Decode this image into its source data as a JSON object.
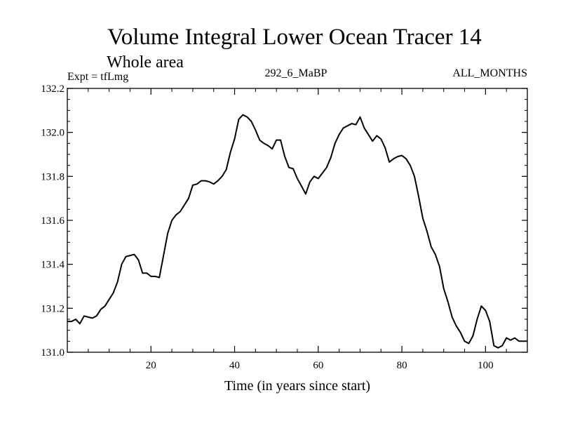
{
  "chart_data": {
    "type": "line",
    "title": "Volume Integral Lower Ocean Tracer 14",
    "subtitle": "Whole area",
    "annotations": {
      "left": "Expt = tfLmg",
      "center": "292_6_MaBP",
      "right": "ALL_MONTHS"
    },
    "xlabel": "Time (in years since start)",
    "ylabel": "",
    "xlim": [
      0,
      110
    ],
    "ylim": [
      131.0,
      132.2
    ],
    "xticks": [
      20,
      40,
      60,
      80,
      100
    ],
    "xtick_labels": [
      "20",
      "40",
      "60",
      "80",
      "100"
    ],
    "yticks": [
      131.0,
      131.2,
      131.4,
      131.6,
      131.8,
      132.0,
      132.2
    ],
    "ytick_labels": [
      "131.0",
      "131.2",
      "131.4",
      "131.6",
      "131.8",
      "132.0",
      "132.2"
    ],
    "series": [
      {
        "name": "tracer14",
        "color": "#000000",
        "x": [
          0,
          1,
          2,
          3,
          4,
          5,
          6,
          7,
          8,
          9,
          10,
          11,
          12,
          13,
          14,
          15,
          16,
          17,
          18,
          19,
          20,
          21,
          22,
          23,
          24,
          25,
          26,
          27,
          28,
          29,
          30,
          31,
          32,
          33,
          34,
          35,
          36,
          37,
          38,
          39,
          40,
          41,
          42,
          43,
          44,
          45,
          46,
          47,
          48,
          49,
          50,
          51,
          52,
          53,
          54,
          55,
          56,
          57,
          58,
          59,
          60,
          61,
          62,
          63,
          64,
          65,
          66,
          67,
          68,
          69,
          70,
          71,
          72,
          73,
          74,
          75,
          76,
          77,
          78,
          79,
          80,
          81,
          82,
          83,
          84,
          85,
          86,
          87,
          88,
          89,
          90,
          91,
          92,
          93,
          94,
          95,
          96,
          97,
          98,
          99,
          100,
          101,
          102,
          103,
          104,
          105,
          106,
          107,
          108,
          109,
          110
        ],
        "y": [
          131.14,
          131.14,
          131.15,
          131.13,
          131.165,
          131.16,
          131.155,
          131.165,
          131.195,
          131.21,
          131.24,
          131.27,
          131.32,
          131.4,
          131.435,
          131.44,
          131.445,
          131.42,
          131.36,
          131.36,
          131.345,
          131.345,
          131.34,
          131.44,
          131.54,
          131.6,
          131.625,
          131.64,
          131.67,
          131.7,
          131.76,
          131.765,
          131.78,
          131.78,
          131.775,
          131.765,
          131.78,
          131.8,
          131.83,
          131.91,
          131.97,
          132.06,
          132.08,
          132.07,
          132.05,
          132.01,
          131.965,
          131.95,
          131.94,
          131.925,
          131.965,
          131.965,
          131.89,
          131.84,
          131.835,
          131.79,
          131.755,
          131.72,
          131.775,
          131.8,
          131.79,
          131.815,
          131.84,
          131.885,
          131.95,
          131.99,
          132.02,
          132.03,
          132.04,
          132.035,
          132.07,
          132.02,
          131.99,
          131.96,
          131.985,
          131.97,
          131.93,
          131.865,
          131.88,
          131.89,
          131.895,
          131.88,
          131.85,
          131.8,
          131.71,
          131.61,
          131.55,
          131.48,
          131.445,
          131.39,
          131.29,
          131.23,
          131.16,
          131.12,
          131.09,
          131.05,
          131.04,
          131.075,
          131.15,
          131.21,
          131.19,
          131.14,
          131.03,
          131.02,
          131.03,
          131.065,
          131.055,
          131.065,
          131.05,
          131.05,
          131.05
        ]
      }
    ]
  }
}
